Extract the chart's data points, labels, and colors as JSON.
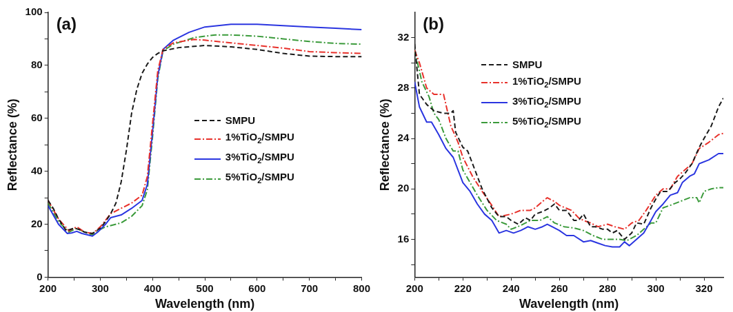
{
  "chart_data": [
    {
      "type": "line",
      "title": "(a)",
      "xlabel": "Wavelength (nm)",
      "ylabel": "Reflectance (%)",
      "xlim": [
        200,
        800
      ],
      "ylim": [
        0,
        100
      ],
      "xticks": [
        200,
        {
          "value": 250,
          "label": null
        },
        300,
        {
          "value": 350,
          "label": null
        },
        400,
        {
          "value": 450,
          "label": null
        },
        500,
        {
          "value": 550,
          "label": null
        },
        600,
        {
          "value": 650,
          "label": null
        },
        700,
        {
          "value": 750,
          "label": null
        },
        800
      ],
      "yticks": [
        0,
        {
          "value": 10,
          "label": null
        },
        20,
        {
          "value": 30,
          "label": null
        },
        40,
        {
          "value": 50,
          "label": null
        },
        60,
        {
          "value": 70,
          "label": null
        },
        80,
        {
          "value": 90,
          "label": null
        },
        100
      ],
      "grid": false,
      "legend": "right",
      "marker": "none",
      "series": [
        {
          "name": "SMPU",
          "color": "#1a1a1a",
          "line_style": "dashed",
          "x": [
            200,
            210,
            220,
            235,
            250,
            260,
            270,
            285,
            300,
            310,
            320,
            330,
            340,
            350,
            360,
            370,
            380,
            390,
            400,
            410,
            420,
            450,
            500,
            550,
            600,
            650,
            700,
            750,
            800
          ],
          "values": [
            29,
            26,
            22,
            17.5,
            18.5,
            18,
            17,
            16.5,
            18.5,
            21,
            24,
            28,
            36,
            48,
            62,
            71,
            77,
            80.5,
            83,
            84.5,
            85.5,
            86.7,
            87.5,
            87,
            86,
            84.5,
            83.5,
            83.3,
            83.3
          ]
        },
        {
          "name": "1%TiO$_{2}$/SMPU",
          "color": "#e8302a",
          "line_style": "dashdot",
          "x": [
            200,
            220,
            240,
            255,
            270,
            285,
            300,
            320,
            340,
            360,
            380,
            390,
            400,
            410,
            420,
            440,
            480,
            500,
            550,
            600,
            650,
            700,
            750,
            800
          ],
          "values": [
            29,
            22,
            17.5,
            19,
            17,
            16.5,
            19,
            24,
            26,
            28,
            31,
            38,
            58,
            78,
            86,
            88.5,
            89.8,
            89.5,
            88.5,
            87.5,
            86.5,
            85.2,
            84.8,
            84.5
          ]
        },
        {
          "name": "3%TiO$_{2}$/SMPU",
          "color": "#2a35e0",
          "line_style": "solid",
          "x": [
            200,
            220,
            237,
            245,
            255,
            265,
            285,
            295,
            310,
            320,
            330,
            340,
            360,
            380,
            390,
            400,
            410,
            420,
            440,
            470,
            500,
            550,
            600,
            650,
            700,
            750,
            800
          ],
          "values": [
            27,
            20,
            16.5,
            16.7,
            17.3,
            16.5,
            15.5,
            17,
            20,
            22.5,
            23,
            23.5,
            26,
            29,
            35,
            55,
            76,
            86,
            89.5,
            92.5,
            94.5,
            95.5,
            95.5,
            95,
            94.5,
            94,
            93.5
          ]
        },
        {
          "name": "5%TiO$_{2}$/SMPU",
          "color": "#3a9a3a",
          "line_style": "dashdot",
          "x": [
            200,
            220,
            240,
            255,
            270,
            285,
            300,
            310,
            320,
            340,
            360,
            380,
            390,
            400,
            410,
            420,
            440,
            480,
            520,
            550,
            600,
            650,
            700,
            750,
            800
          ],
          "values": [
            28,
            21,
            17,
            18.5,
            17,
            16,
            18,
            19,
            19.5,
            20.5,
            23,
            27,
            33,
            53,
            75,
            85.5,
            88,
            90.5,
            91.5,
            91.5,
            91,
            90,
            89,
            88.3,
            88
          ]
        }
      ]
    },
    {
      "type": "line",
      "title": "(b)",
      "xlabel": "Wavelength (nm)",
      "ylabel": "Reflectance (%)",
      "xlim": [
        200,
        328
      ],
      "ylim": [
        13,
        34
      ],
      "xticks": [
        200,
        {
          "value": 210,
          "label": null
        },
        220,
        {
          "value": 230,
          "label": null
        },
        240,
        {
          "value": 250,
          "label": null
        },
        260,
        {
          "value": 270,
          "label": null
        },
        280,
        {
          "value": 290,
          "label": null
        },
        300,
        {
          "value": 310,
          "label": null
        },
        320
      ],
      "yticks": [
        {
          "value": 14,
          "label": null
        },
        16,
        {
          "value": 18,
          "label": null
        },
        20,
        {
          "value": 22,
          "label": null
        },
        24,
        {
          "value": 26,
          "label": null
        },
        28,
        {
          "value": 30,
          "label": null
        },
        32
      ],
      "grid": false,
      "legend": "top",
      "marker": "none",
      "series": [
        {
          "name": "SMPU",
          "color": "#1a1a1a",
          "line_style": "dashed",
          "x": [
            200,
            202,
            205,
            208,
            212,
            215,
            216,
            217,
            220,
            222,
            225,
            228,
            232,
            235,
            238,
            240,
            243,
            246,
            248,
            250,
            253,
            256,
            258,
            260,
            263,
            266,
            268,
            270,
            273,
            275,
            278,
            280,
            282,
            284,
            287,
            290,
            292,
            295,
            298,
            300,
            302,
            305,
            308,
            310,
            312,
            315,
            318,
            320,
            323,
            326,
            328
          ],
          "values": [
            31.5,
            27.5,
            26.7,
            26.2,
            26,
            26,
            26.2,
            24.5,
            23.3,
            23,
            21.5,
            20,
            18.5,
            17.8,
            17.8,
            17.5,
            17.2,
            17.7,
            17.5,
            18,
            18.2,
            18.5,
            18.8,
            18.3,
            18.3,
            17.5,
            17.5,
            18,
            17,
            17,
            16.8,
            16.8,
            16.5,
            16.7,
            16,
            16.5,
            17.3,
            17.2,
            18.5,
            19.2,
            19.8,
            19.8,
            20.5,
            20.8,
            21.2,
            22,
            23.3,
            24,
            25,
            26.5,
            27.2
          ]
        },
        {
          "name": "1%TiO$_{2}$/SMPU",
          "color": "#e8302a",
          "line_style": "dashdot",
          "x": [
            200,
            202,
            205,
            208,
            212,
            215,
            218,
            220,
            224,
            228,
            232,
            235,
            240,
            244,
            248,
            250,
            253,
            255,
            258,
            260,
            265,
            268,
            270,
            273,
            276,
            280,
            283,
            287,
            290,
            293,
            296,
            300,
            303,
            306,
            309,
            312,
            315,
            318,
            322,
            326,
            328
          ],
          "values": [
            31,
            30,
            28,
            27.5,
            27.5,
            25,
            23.7,
            22.5,
            21,
            19.8,
            18.7,
            17.8,
            18,
            18.3,
            18.3,
            18.5,
            19,
            19.3,
            19,
            18.7,
            18.3,
            17.7,
            17.5,
            17.3,
            17,
            17.2,
            17,
            16.8,
            17.3,
            17.5,
            18.3,
            19.5,
            20,
            20,
            21,
            21.5,
            22,
            23.2,
            23.7,
            24.3,
            24.4
          ]
        },
        {
          "name": "3%TiO$_{2}$/SMPU",
          "color": "#2a35e0",
          "line_style": "solid",
          "x": [
            200,
            202,
            205,
            207,
            210,
            213,
            216,
            218,
            220,
            223,
            226,
            229,
            232,
            235,
            238,
            241,
            244,
            247,
            250,
            253,
            255,
            257,
            260,
            263,
            266,
            270,
            273,
            276,
            279,
            282,
            285,
            287,
            289,
            292,
            295,
            298,
            300,
            303,
            306,
            309,
            311,
            314,
            316,
            318,
            322,
            326,
            328
          ],
          "values": [
            28.5,
            26.5,
            25.3,
            25.3,
            24.3,
            23.2,
            22.5,
            21.5,
            20.5,
            19.8,
            18.8,
            18,
            17.5,
            16.5,
            16.7,
            16.5,
            16.7,
            17,
            16.8,
            17,
            17.2,
            17,
            16.7,
            16.3,
            16.3,
            15.8,
            15.9,
            15.7,
            15.5,
            15.4,
            15.4,
            15.8,
            15.5,
            16,
            16.5,
            17.5,
            18.2,
            18.8,
            19.5,
            19.7,
            20.5,
            21,
            21.2,
            22,
            22.3,
            22.8,
            22.8
          ]
        },
        {
          "name": "5%TiO$_{2}$/SMPU",
          "color": "#3a9a3a",
          "line_style": "dashdot",
          "x": [
            200,
            203,
            206,
            208,
            210,
            213,
            216,
            218,
            220,
            223,
            226,
            230,
            234,
            238,
            240,
            244,
            248,
            252,
            255,
            258,
            262,
            266,
            270,
            274,
            278,
            282,
            285,
            288,
            292,
            295,
            298,
            300,
            303,
            306,
            310,
            314,
            317,
            318,
            320,
            323,
            326,
            328
          ],
          "values": [
            31,
            28.5,
            27.3,
            26,
            25.5,
            24,
            23,
            23,
            21.5,
            20.5,
            19.5,
            18.3,
            17.5,
            17.2,
            16.8,
            17.1,
            17.5,
            17.5,
            17.8,
            17.3,
            17,
            16.9,
            16.7,
            16.3,
            16,
            16,
            16,
            15.9,
            16.3,
            16.8,
            17.3,
            17.3,
            18.5,
            18.7,
            19,
            19.3,
            19.3,
            18.9,
            19.8,
            20,
            20.1,
            20.1
          ]
        }
      ]
    }
  ]
}
